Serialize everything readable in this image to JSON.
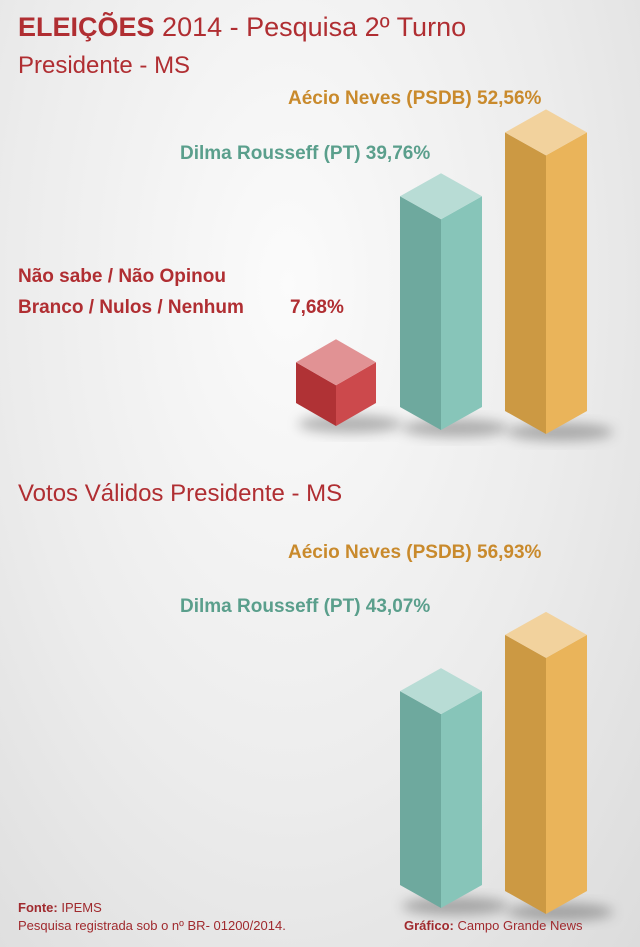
{
  "header": {
    "title_bold": "ELEIÇÕES",
    "title_rest": "2014 - Pesquisa 2º Turno",
    "subtitle": "Presidente - MS"
  },
  "section2": {
    "title": "Votos Válidos Presidente - MS"
  },
  "colors": {
    "title": "#b02e32",
    "aecio": "#c98a2c",
    "dilma": "#5a9f8c",
    "nulos": "#b02e32"
  },
  "chart_data": [
    {
      "type": "bar",
      "title": "Presidente - MS",
      "categories": [
        "Não sabe / Não Opinou Branco / Nulos / Nenhum",
        "Dilma Rousseff (PT)",
        "Aécio Neves (PSDB)"
      ],
      "values": [
        7.68,
        39.76,
        52.56
      ],
      "value_labels": [
        "7,68%",
        "39,76%",
        "52,56%"
      ],
      "colors": [
        "#c8393c",
        "#7dc0b3",
        "#e8ae4c"
      ]
    },
    {
      "type": "bar",
      "title": "Votos Válidos Presidente - MS",
      "categories": [
        "Dilma Rousseff (PT)",
        "Aécio Neves (PSDB)"
      ],
      "values": [
        43.07,
        56.93
      ],
      "value_labels": [
        "43,07%",
        "56,93%"
      ],
      "colors": [
        "#7dc0b3",
        "#e8ae4c"
      ]
    }
  ],
  "labels": {
    "c1_aecio": "Aécio Neves (PSDB) 52,56%",
    "c1_dilma": "Dilma Rousseff (PT) 39,76%",
    "c1_nulos_line1": "Não sabe / Não Opinou",
    "c1_nulos_line2": "Branco / Nulos / Nenhum",
    "c1_nulos_value": "7,68%",
    "c2_aecio": "Aécio Neves (PSDB) 56,93%",
    "c2_dilma": "Dilma Rousseff (PT) 43,07%"
  },
  "footer": {
    "source_label": "Fonte:",
    "source_value": "IPEMS",
    "registration": "Pesquisa registrada sob o nº BR- 01200/2014.",
    "credit_label": "Gráfico:",
    "credit_value": "Campo Grande News"
  }
}
